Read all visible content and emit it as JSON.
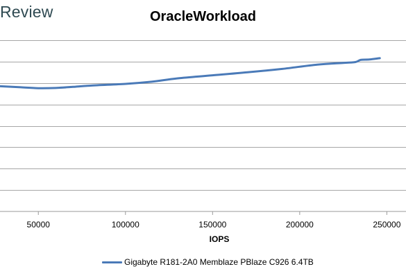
{
  "brand": {
    "logo_text": "Review"
  },
  "chart_data": {
    "type": "line",
    "title": "OracleWorkload",
    "xlabel": "IOPS",
    "ylabel": "",
    "xlim": [
      28000,
      261000
    ],
    "ylim": [
      0,
      8
    ],
    "x_ticks": [
      50000,
      100000,
      150000,
      200000,
      250000
    ],
    "x_tick_labels": [
      "50000",
      "100000",
      "150000",
      "200000",
      "250000"
    ],
    "y_gridlines": [
      1,
      2,
      3,
      4,
      5,
      6,
      7,
      8
    ],
    "grid": true,
    "legend_position": "bottom",
    "series": [
      {
        "name": "Gigabyte R181-2A0 Memblaze PBlaze C926 6.4TB",
        "color": "#4a7ab8",
        "x": [
          28000,
          40000,
          50000,
          60000,
          70000,
          80000,
          100000,
          115000,
          130000,
          150000,
          170000,
          190000,
          210000,
          225000,
          232000,
          235000,
          240000,
          246000
        ],
        "y": [
          5.85,
          5.8,
          5.76,
          5.77,
          5.82,
          5.88,
          5.96,
          6.06,
          6.22,
          6.36,
          6.5,
          6.66,
          6.86,
          6.94,
          6.98,
          7.08,
          7.1,
          7.16
        ]
      }
    ]
  }
}
